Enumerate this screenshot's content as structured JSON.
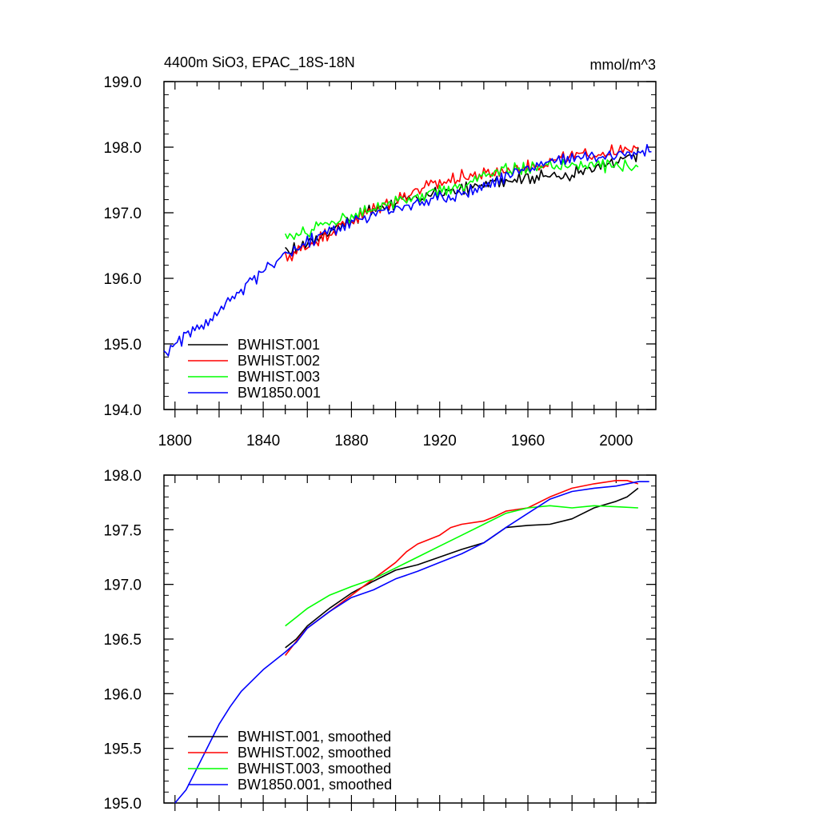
{
  "chart_data": [
    {
      "type": "line",
      "title": "4400m SiO3, EPAC_18S-18N",
      "units_label": "mmol/m^3",
      "xlim": [
        1795,
        2018
      ],
      "ylim": [
        194.0,
        199.0
      ],
      "xticks": [
        1800,
        1840,
        1880,
        1920,
        1960,
        2000
      ],
      "xtick_labels": [
        "1800",
        "1840",
        "1880",
        "1920",
        "1960",
        "2000"
      ],
      "yticks": [
        194.0,
        195.0,
        196.0,
        197.0,
        198.0,
        199.0
      ],
      "ytick_labels": [
        "194.0",
        "195.0",
        "196.0",
        "197.0",
        "198.0",
        "199.0"
      ],
      "legend_position": "bottom-left",
      "series": [
        {
          "name": "BWHIST.001",
          "color": "#000000",
          "anchors": [
            [
              1850,
              196.38
            ],
            [
              1860,
              196.55
            ],
            [
              1870,
              196.72
            ],
            [
              1880,
              196.9
            ],
            [
              1890,
              197.05
            ],
            [
              1900,
              197.15
            ],
            [
              1910,
              197.22
            ],
            [
              1920,
              197.3
            ],
            [
              1930,
              197.35
            ],
            [
              1940,
              197.42
            ],
            [
              1950,
              197.52
            ],
            [
              1960,
              197.55
            ],
            [
              1970,
              197.55
            ],
            [
              1980,
              197.6
            ],
            [
              1990,
              197.68
            ],
            [
              2000,
              197.75
            ],
            [
              2010,
              197.9
            ]
          ]
        },
        {
          "name": "BWHIST.002",
          "color": "#ff0000",
          "anchors": [
            [
              1850,
              196.3
            ],
            [
              1860,
              196.5
            ],
            [
              1870,
              196.7
            ],
            [
              1880,
              196.88
            ],
            [
              1890,
              197.05
            ],
            [
              1900,
              197.2
            ],
            [
              1910,
              197.35
            ],
            [
              1920,
              197.45
            ],
            [
              1930,
              197.55
            ],
            [
              1940,
              197.58
            ],
            [
              1950,
              197.65
            ],
            [
              1960,
              197.7
            ],
            [
              1970,
              197.78
            ],
            [
              1980,
              197.85
            ],
            [
              1990,
              197.9
            ],
            [
              2000,
              197.93
            ],
            [
              2010,
              197.95
            ]
          ]
        },
        {
          "name": "BWHIST.003",
          "color": "#00ff00",
          "anchors": [
            [
              1850,
              196.58
            ],
            [
              1860,
              196.72
            ],
            [
              1870,
              196.85
            ],
            [
              1880,
              196.95
            ],
            [
              1890,
              197.05
            ],
            [
              1900,
              197.15
            ],
            [
              1910,
              197.25
            ],
            [
              1920,
              197.35
            ],
            [
              1930,
              197.42
            ],
            [
              1940,
              197.55
            ],
            [
              1950,
              197.65
            ],
            [
              1960,
              197.68
            ],
            [
              1970,
              197.7
            ],
            [
              1980,
              197.72
            ],
            [
              1990,
              197.72
            ],
            [
              2000,
              197.72
            ],
            [
              2010,
              197.7
            ]
          ]
        },
        {
          "name": "BW1850.001",
          "color": "#0000ff",
          "anchors": [
            [
              1795,
              194.85
            ],
            [
              1800,
              195.0
            ],
            [
              1810,
              195.25
            ],
            [
              1820,
              195.5
            ],
            [
              1830,
              195.82
            ],
            [
              1840,
              196.1
            ],
            [
              1850,
              196.35
            ],
            [
              1860,
              196.55
            ],
            [
              1870,
              196.72
            ],
            [
              1880,
              196.85
            ],
            [
              1890,
              196.97
            ],
            [
              1900,
              197.08
            ],
            [
              1910,
              197.15
            ],
            [
              1920,
              197.22
            ],
            [
              1930,
              197.3
            ],
            [
              1940,
              197.4
            ],
            [
              1950,
              197.55
            ],
            [
              1960,
              197.68
            ],
            [
              1970,
              197.8
            ],
            [
              1980,
              197.85
            ],
            [
              1990,
              197.88
            ],
            [
              2000,
              197.9
            ],
            [
              2010,
              197.93
            ],
            [
              2016,
              197.93
            ]
          ]
        }
      ]
    },
    {
      "type": "line",
      "xlim": [
        1795,
        2018
      ],
      "ylim": [
        195.0,
        198.0
      ],
      "xticks": [
        1800,
        1840,
        1880,
        1920,
        1960,
        2000
      ],
      "yticks": [
        195.0,
        195.5,
        196.0,
        196.5,
        197.0,
        197.5,
        198.0
      ],
      "ytick_labels": [
        "195.0",
        "195.5",
        "196.0",
        "196.5",
        "197.0",
        "197.5",
        "198.0"
      ],
      "legend_position": "bottom-left",
      "series": [
        {
          "name": "BWHIST.001, smoothed",
          "color": "#000000",
          "points": [
            [
              1850,
              196.42
            ],
            [
              1855,
              196.5
            ],
            [
              1860,
              196.62
            ],
            [
              1870,
              196.78
            ],
            [
              1880,
              196.92
            ],
            [
              1890,
              197.03
            ],
            [
              1900,
              197.13
            ],
            [
              1910,
              197.18
            ],
            [
              1920,
              197.25
            ],
            [
              1930,
              197.32
            ],
            [
              1940,
              197.38
            ],
            [
              1945,
              197.45
            ],
            [
              1950,
              197.52
            ],
            [
              1960,
              197.54
            ],
            [
              1970,
              197.55
            ],
            [
              1980,
              197.6
            ],
            [
              1990,
              197.7
            ],
            [
              2000,
              197.76
            ],
            [
              2005,
              197.8
            ],
            [
              2010,
              197.88
            ]
          ]
        },
        {
          "name": "BWHIST.002, smoothed",
          "color": "#ff0000",
          "points": [
            [
              1850,
              196.35
            ],
            [
              1855,
              196.48
            ],
            [
              1860,
              196.6
            ],
            [
              1870,
              196.75
            ],
            [
              1880,
              196.9
            ],
            [
              1890,
              197.05
            ],
            [
              1900,
              197.2
            ],
            [
              1905,
              197.3
            ],
            [
              1910,
              197.37
            ],
            [
              1920,
              197.45
            ],
            [
              1925,
              197.52
            ],
            [
              1930,
              197.55
            ],
            [
              1940,
              197.58
            ],
            [
              1945,
              197.62
            ],
            [
              1950,
              197.67
            ],
            [
              1960,
              197.7
            ],
            [
              1970,
              197.8
            ],
            [
              1980,
              197.88
            ],
            [
              1990,
              197.92
            ],
            [
              2000,
              197.95
            ],
            [
              2005,
              197.95
            ],
            [
              2010,
              197.92
            ]
          ]
        },
        {
          "name": "BWHIST.003, smoothed",
          "color": "#00ff00",
          "points": [
            [
              1850,
              196.62
            ],
            [
              1855,
              196.7
            ],
            [
              1860,
              196.78
            ],
            [
              1870,
              196.9
            ],
            [
              1880,
              196.98
            ],
            [
              1890,
              197.05
            ],
            [
              1900,
              197.15
            ],
            [
              1910,
              197.25
            ],
            [
              1920,
              197.35
            ],
            [
              1930,
              197.45
            ],
            [
              1940,
              197.55
            ],
            [
              1950,
              197.65
            ],
            [
              1960,
              197.7
            ],
            [
              1970,
              197.72
            ],
            [
              1980,
              197.7
            ],
            [
              1990,
              197.72
            ],
            [
              2000,
              197.71
            ],
            [
              2010,
              197.7
            ]
          ]
        },
        {
          "name": "BW1850.001, smoothed",
          "color": "#0000ff",
          "points": [
            [
              1800,
              195.0
            ],
            [
              1805,
              195.12
            ],
            [
              1810,
              195.32
            ],
            [
              1815,
              195.52
            ],
            [
              1820,
              195.72
            ],
            [
              1825,
              195.88
            ],
            [
              1830,
              196.02
            ],
            [
              1840,
              196.22
            ],
            [
              1850,
              196.38
            ],
            [
              1855,
              196.47
            ],
            [
              1860,
              196.6
            ],
            [
              1870,
              196.75
            ],
            [
              1880,
              196.88
            ],
            [
              1890,
              196.95
            ],
            [
              1900,
              197.05
            ],
            [
              1910,
              197.12
            ],
            [
              1920,
              197.2
            ],
            [
              1930,
              197.28
            ],
            [
              1940,
              197.38
            ],
            [
              1950,
              197.52
            ],
            [
              1960,
              197.65
            ],
            [
              1970,
              197.78
            ],
            [
              1980,
              197.85
            ],
            [
              1990,
              197.88
            ],
            [
              2000,
              197.9
            ],
            [
              2010,
              197.94
            ],
            [
              2015,
              197.94
            ]
          ]
        }
      ]
    }
  ]
}
